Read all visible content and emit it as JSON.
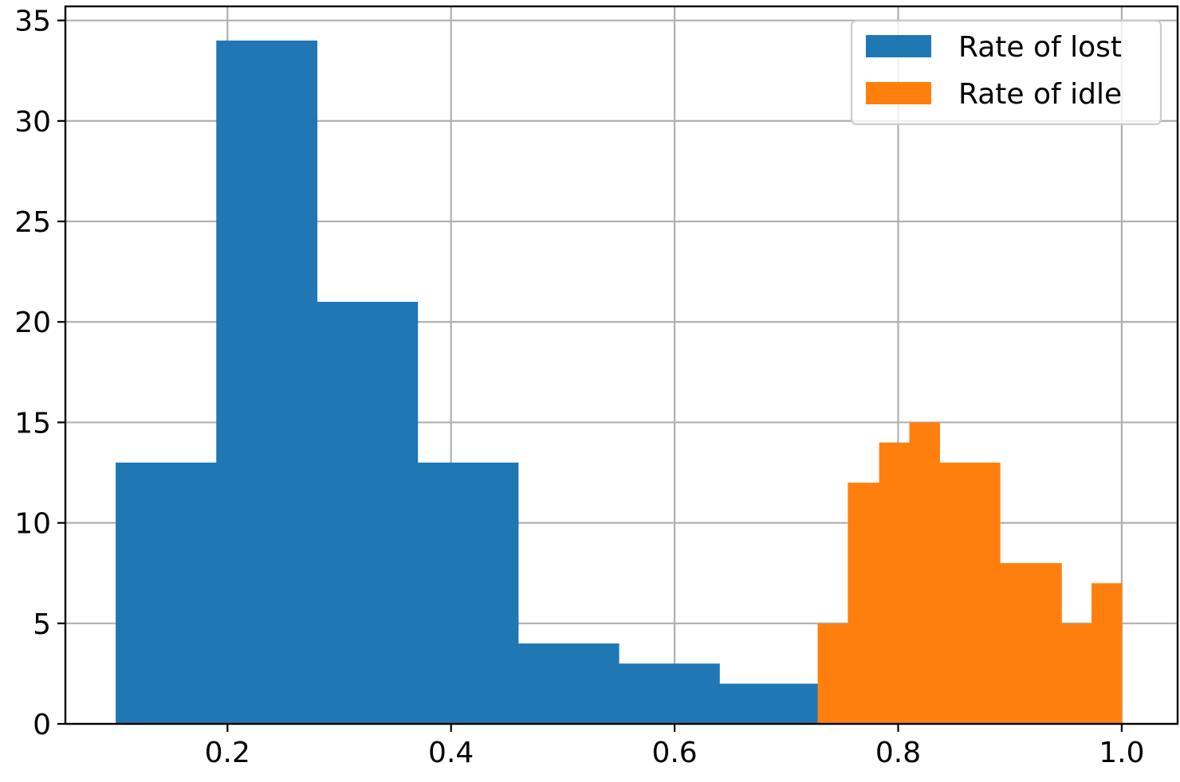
{
  "chart_data": {
    "type": "bar",
    "subtype": "histogram",
    "title": "",
    "xlabel": "",
    "ylabel": "",
    "xlim": [
      0.055,
      1.05
    ],
    "ylim": [
      0,
      35.7
    ],
    "xticks": [
      0.2,
      0.4,
      0.6,
      0.8,
      1.0
    ],
    "xtick_labels": [
      "0.2",
      "0.4",
      "0.6",
      "0.8",
      "1.0"
    ],
    "yticks": [
      0,
      5,
      10,
      15,
      20,
      25,
      30,
      35
    ],
    "ytick_labels": [
      "0",
      "5",
      "10",
      "15",
      "20",
      "25",
      "30",
      "35"
    ],
    "grid": true,
    "legend_position": "top-right",
    "series": [
      {
        "name": "Rate of lost",
        "color": "#1f77b4",
        "bin_edges": [
          0.1,
          0.19,
          0.28,
          0.37,
          0.46,
          0.55,
          0.64,
          0.73
        ],
        "counts": [
          13,
          34,
          21,
          13,
          4,
          3,
          2
        ]
      },
      {
        "name": "Rate of idle",
        "color": "#ff7f0e",
        "bin_edges": [
          0.728,
          0.755,
          0.783,
          0.81,
          0.837,
          0.864,
          0.891,
          0.918,
          0.946,
          0.973,
          1.0
        ],
        "counts": [
          5,
          12,
          14,
          15,
          13,
          13,
          8,
          8,
          5,
          7
        ]
      }
    ]
  }
}
